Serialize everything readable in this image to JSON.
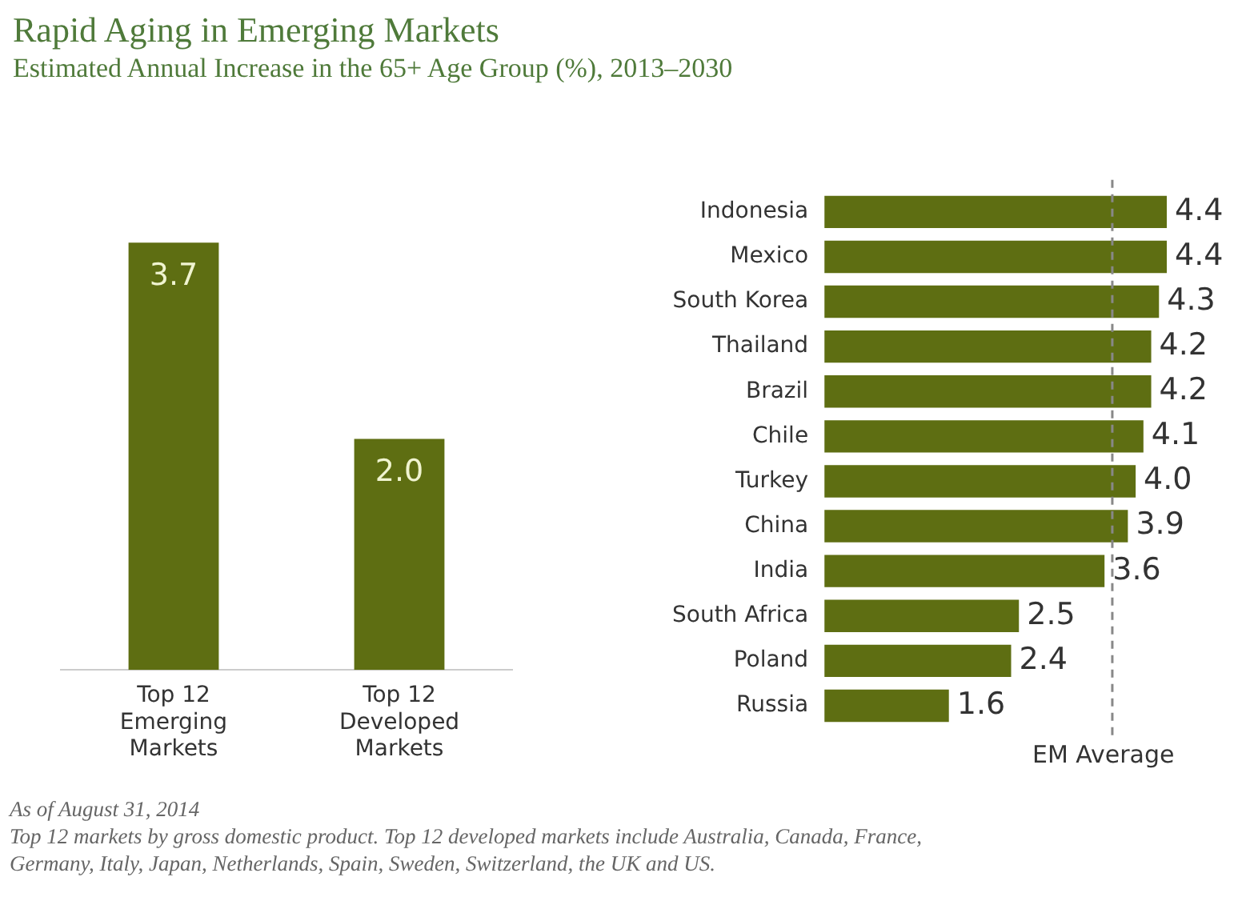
{
  "chart_data": [
    {
      "type": "bar",
      "title": "Rapid Aging in Emerging Markets",
      "subtitle": "Estimated Annual Increase in the 65+ Age Group (%), 2013–2030",
      "categories": [
        "Top 12\nEmerging\nMarkets",
        "Top 12\nDeveloped\nMarkets"
      ],
      "values": [
        3.7,
        2.0
      ],
      "value_labels": [
        "3.7",
        "2.0"
      ],
      "color": "#5e6e12",
      "tick_labels": "x",
      "grid": false,
      "legend": false,
      "annotations": [
        "As of August 31, 2014",
        "Top 12 markets by gross domestic product. Top 12 developed markets include Australia, Canada, France,",
        "Germany, Italy, Japan, Netherlands, Spain, Sweden, Switzerland, the UK and US."
      ]
    },
    {
      "type": "bar",
      "orientation": "horizontal",
      "categories": [
        "Indonesia",
        "Mexico",
        "South Korea",
        "Thailand",
        "Brazil",
        "Chile",
        "Turkey",
        "China",
        "India",
        "South Africa",
        "Poland",
        "Russia"
      ],
      "values": [
        4.4,
        4.4,
        4.3,
        4.2,
        4.2,
        4.1,
        4.0,
        3.9,
        3.6,
        2.5,
        2.4,
        1.6
      ],
      "value_labels": [
        "4.4",
        "4.4",
        "4.3",
        "4.2",
        "4.2",
        "4.1",
        "4.0",
        "3.9",
        "3.6",
        "2.5",
        "2.4",
        "1.6"
      ],
      "color": "#5e6e12",
      "tick_labels": "y",
      "grid": false,
      "legend": false,
      "ref_lines": [
        {
          "axis": "x",
          "value": 3.7,
          "label": "EM Average",
          "color": "#888888",
          "line_style": "dashed"
        }
      ]
    }
  ]
}
